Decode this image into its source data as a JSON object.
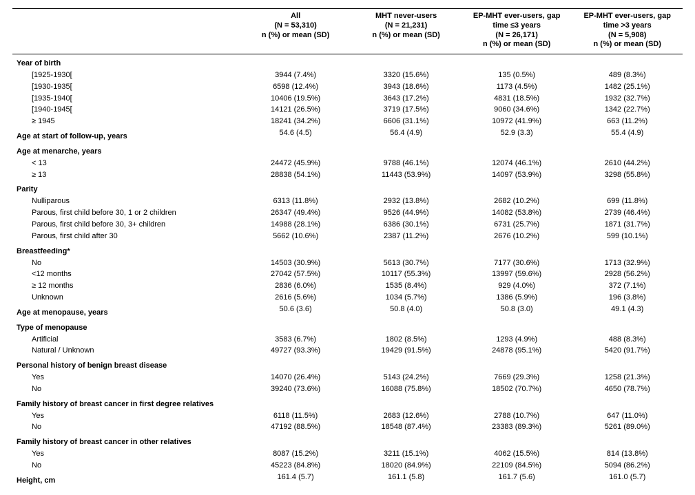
{
  "columns": [
    {
      "lines": [
        "All",
        "(N = 53,310)",
        "n (%) or mean (SD)"
      ]
    },
    {
      "lines": [
        "MHT never-users",
        "(N = 21,231)",
        "n (%) or mean (SD)"
      ]
    },
    {
      "lines": [
        "EP-MHT ever-users, gap",
        "time ≤3 years",
        "(N = 26,171)",
        "n (%) or mean (SD)"
      ]
    },
    {
      "lines": [
        "EP-MHT ever-users, gap",
        "time >3 years",
        "(N = 5,908)",
        "n (%) or mean (SD)"
      ]
    }
  ],
  "rows": [
    {
      "type": "section",
      "label": "Year of birth"
    },
    {
      "type": "data",
      "indent": true,
      "label": "[1925-1930[",
      "v": [
        "3944 (7.4%)",
        "3320 (15.6%)",
        "135 (0.5%)",
        "489 (8.3%)"
      ]
    },
    {
      "type": "data",
      "indent": true,
      "label": "[1930-1935[",
      "v": [
        "6598 (12.4%)",
        "3943 (18.6%)",
        "1173 (4.5%)",
        "1482 (25.1%)"
      ]
    },
    {
      "type": "data",
      "indent": true,
      "label": "[1935-1940[",
      "v": [
        "10406 (19.5%)",
        "3643 (17.2%)",
        "4831 (18.5%)",
        "1932 (32.7%)"
      ]
    },
    {
      "type": "data",
      "indent": true,
      "label": "[1940-1945[",
      "v": [
        "14121 (26.5%)",
        "3719 (17.5%)",
        "9060 (34.6%)",
        "1342 (22.7%)"
      ]
    },
    {
      "type": "data",
      "indent": true,
      "label": "≥ 1945",
      "v": [
        "18241 (34.2%)",
        "6606 (31.1%)",
        "10972 (41.9%)",
        "663 (11.2%)"
      ]
    },
    {
      "type": "section",
      "label": "Age at start of follow-up, years",
      "v": [
        "54.6 (4.5)",
        "56.4 (4.9)",
        "52.9 (3.3)",
        "55.4 (4.9)"
      ]
    },
    {
      "type": "section",
      "label": "Age at menarche, years"
    },
    {
      "type": "data",
      "indent": true,
      "label": "< 13",
      "v": [
        "24472 (45.9%)",
        "9788 (46.1%)",
        "12074 (46.1%)",
        "2610 (44.2%)"
      ]
    },
    {
      "type": "data",
      "indent": true,
      "label": "≥ 13",
      "v": [
        "28838 (54.1%)",
        "11443 (53.9%)",
        "14097 (53.9%)",
        "3298 (55.8%)"
      ]
    },
    {
      "type": "section",
      "label": "Parity"
    },
    {
      "type": "data",
      "indent": true,
      "label": "Nulliparous",
      "v": [
        "6313 (11.8%)",
        "2932 (13.8%)",
        "2682 (10.2%)",
        "699 (11.8%)"
      ]
    },
    {
      "type": "data",
      "indent": true,
      "label": "Parous, first child before 30, 1 or 2 children",
      "v": [
        "26347 (49.4%)",
        "9526 (44.9%)",
        "14082 (53.8%)",
        "2739 (46.4%)"
      ]
    },
    {
      "type": "data",
      "indent": true,
      "label": "Parous, first child before 30, 3+ children",
      "v": [
        "14988 (28.1%)",
        "6386 (30.1%)",
        "6731 (25.7%)",
        "1871 (31.7%)"
      ]
    },
    {
      "type": "data",
      "indent": true,
      "label": "Parous, first child after 30",
      "v": [
        "5662 (10.6%)",
        "2387 (11.2%)",
        "2676 (10.2%)",
        "599 (10.1%)"
      ]
    },
    {
      "type": "section",
      "label": "Breastfeeding*"
    },
    {
      "type": "data",
      "indent": true,
      "label": "No",
      "v": [
        "14503 (30.9%)",
        "5613 (30.7%)",
        "7177 (30.6%)",
        "1713 (32.9%)"
      ]
    },
    {
      "type": "data",
      "indent": true,
      "label": "<12 months",
      "v": [
        "27042 (57.5%)",
        "10117 (55.3%)",
        "13997 (59.6%)",
        "2928 (56.2%)"
      ]
    },
    {
      "type": "data",
      "indent": true,
      "label": "≥ 12 months",
      "v": [
        "2836 (6.0%)",
        "1535 (8.4%)",
        "929 (4.0%)",
        "372 (7.1%)"
      ]
    },
    {
      "type": "data",
      "indent": true,
      "label": "Unknown",
      "v": [
        "2616 (5.6%)",
        "1034 (5.7%)",
        "1386 (5.9%)",
        "196 (3.8%)"
      ]
    },
    {
      "type": "section",
      "label": "Age at menopause, years",
      "v": [
        "50.6 (3.6)",
        "50.8 (4.0)",
        "50.8 (3.0)",
        "49.1 (4.3)"
      ]
    },
    {
      "type": "section",
      "label": "Type of menopause"
    },
    {
      "type": "data",
      "indent": true,
      "label": "Artificial",
      "v": [
        "3583 (6.7%)",
        "1802 (8.5%)",
        "1293 (4.9%)",
        "488 (8.3%)"
      ]
    },
    {
      "type": "data",
      "indent": true,
      "label": "Natural / Unknown",
      "v": [
        "49727 (93.3%)",
        "19429 (91.5%)",
        "24878 (95.1%)",
        "5420 (91.7%)"
      ]
    },
    {
      "type": "section",
      "label": "Personal history of benign breast disease"
    },
    {
      "type": "data",
      "indent": true,
      "label": "Yes",
      "v": [
        "14070 (26.4%)",
        "5143 (24.2%)",
        "7669 (29.3%)",
        "1258 (21.3%)"
      ]
    },
    {
      "type": "data",
      "indent": true,
      "label": "No",
      "v": [
        "39240 (73.6%)",
        "16088 (75.8%)",
        "18502 (70.7%)",
        "4650 (78.7%)"
      ]
    },
    {
      "type": "section",
      "label": "Family history of breast cancer in first degree relatives"
    },
    {
      "type": "data",
      "indent": true,
      "label": "Yes",
      "v": [
        "6118 (11.5%)",
        "2683 (12.6%)",
        "2788 (10.7%)",
        "647 (11.0%)"
      ]
    },
    {
      "type": "data",
      "indent": true,
      "label": "No",
      "v": [
        "47192 (88.5%)",
        "18548 (87.4%)",
        "23383 (89.3%)",
        "5261 (89.0%)"
      ]
    },
    {
      "type": "section",
      "label": "Family history of breast cancer in other relatives"
    },
    {
      "type": "data",
      "indent": true,
      "label": "Yes",
      "v": [
        "8087 (15.2%)",
        "3211 (15.1%)",
        "4062 (15.5%)",
        "814 (13.8%)"
      ]
    },
    {
      "type": "data",
      "indent": true,
      "label": "No",
      "v": [
        "45223 (84.8%)",
        "18020 (84.9%)",
        "22109 (84.5%)",
        "5094 (86.2%)"
      ]
    },
    {
      "type": "section",
      "label": "Height, cm",
      "v": [
        "161.4 (5.7)",
        "161.1 (5.8)",
        "161.7 (5.6)",
        "161.0 (5.7)"
      ]
    }
  ]
}
